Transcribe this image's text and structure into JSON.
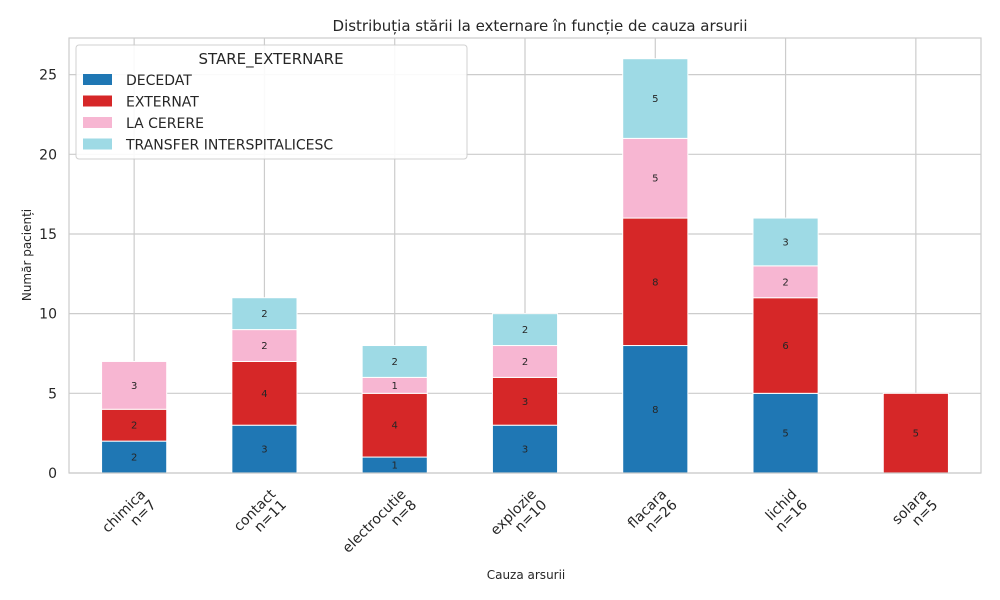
{
  "chart_data": {
    "type": "bar",
    "stacked": true,
    "title": "Distribuția stării la externare în funcție de cauza arsurii",
    "xlabel": "Cauza arsurii",
    "ylabel": "Număr pacienți",
    "ylim": [
      0,
      27.3
    ],
    "yticks": [
      "0",
      "5",
      "10",
      "15",
      "20",
      "25"
    ],
    "grid": true,
    "legend_title": "STARE_EXTERNARE",
    "legend_position": "top-left",
    "categories": [
      {
        "name": "chimica",
        "n_label": "n=7"
      },
      {
        "name": "contact",
        "n_label": "n=11"
      },
      {
        "name": "electrocutie",
        "n_label": "n=8"
      },
      {
        "name": "explozie",
        "n_label": "n=10"
      },
      {
        "name": "flacara",
        "n_label": "n=26"
      },
      {
        "name": "lichid",
        "n_label": "n=16"
      },
      {
        "name": "solara",
        "n_label": "n=5"
      }
    ],
    "series": [
      {
        "name": "DECEDAT",
        "color": "#1f77b4",
        "values": [
          2,
          3,
          1,
          3,
          8,
          5,
          0
        ]
      },
      {
        "name": "EXTERNAT",
        "color": "#d62728",
        "values": [
          2,
          4,
          4,
          3,
          8,
          6,
          5
        ]
      },
      {
        "name": "LA CERERE",
        "color": "#f7b6d2",
        "values": [
          3,
          2,
          1,
          2,
          5,
          2,
          0
        ]
      },
      {
        "name": "TRANSFER INTERSPITALICESC",
        "color": "#9edae5",
        "values": [
          0,
          2,
          2,
          2,
          5,
          3,
          0
        ]
      }
    ]
  }
}
